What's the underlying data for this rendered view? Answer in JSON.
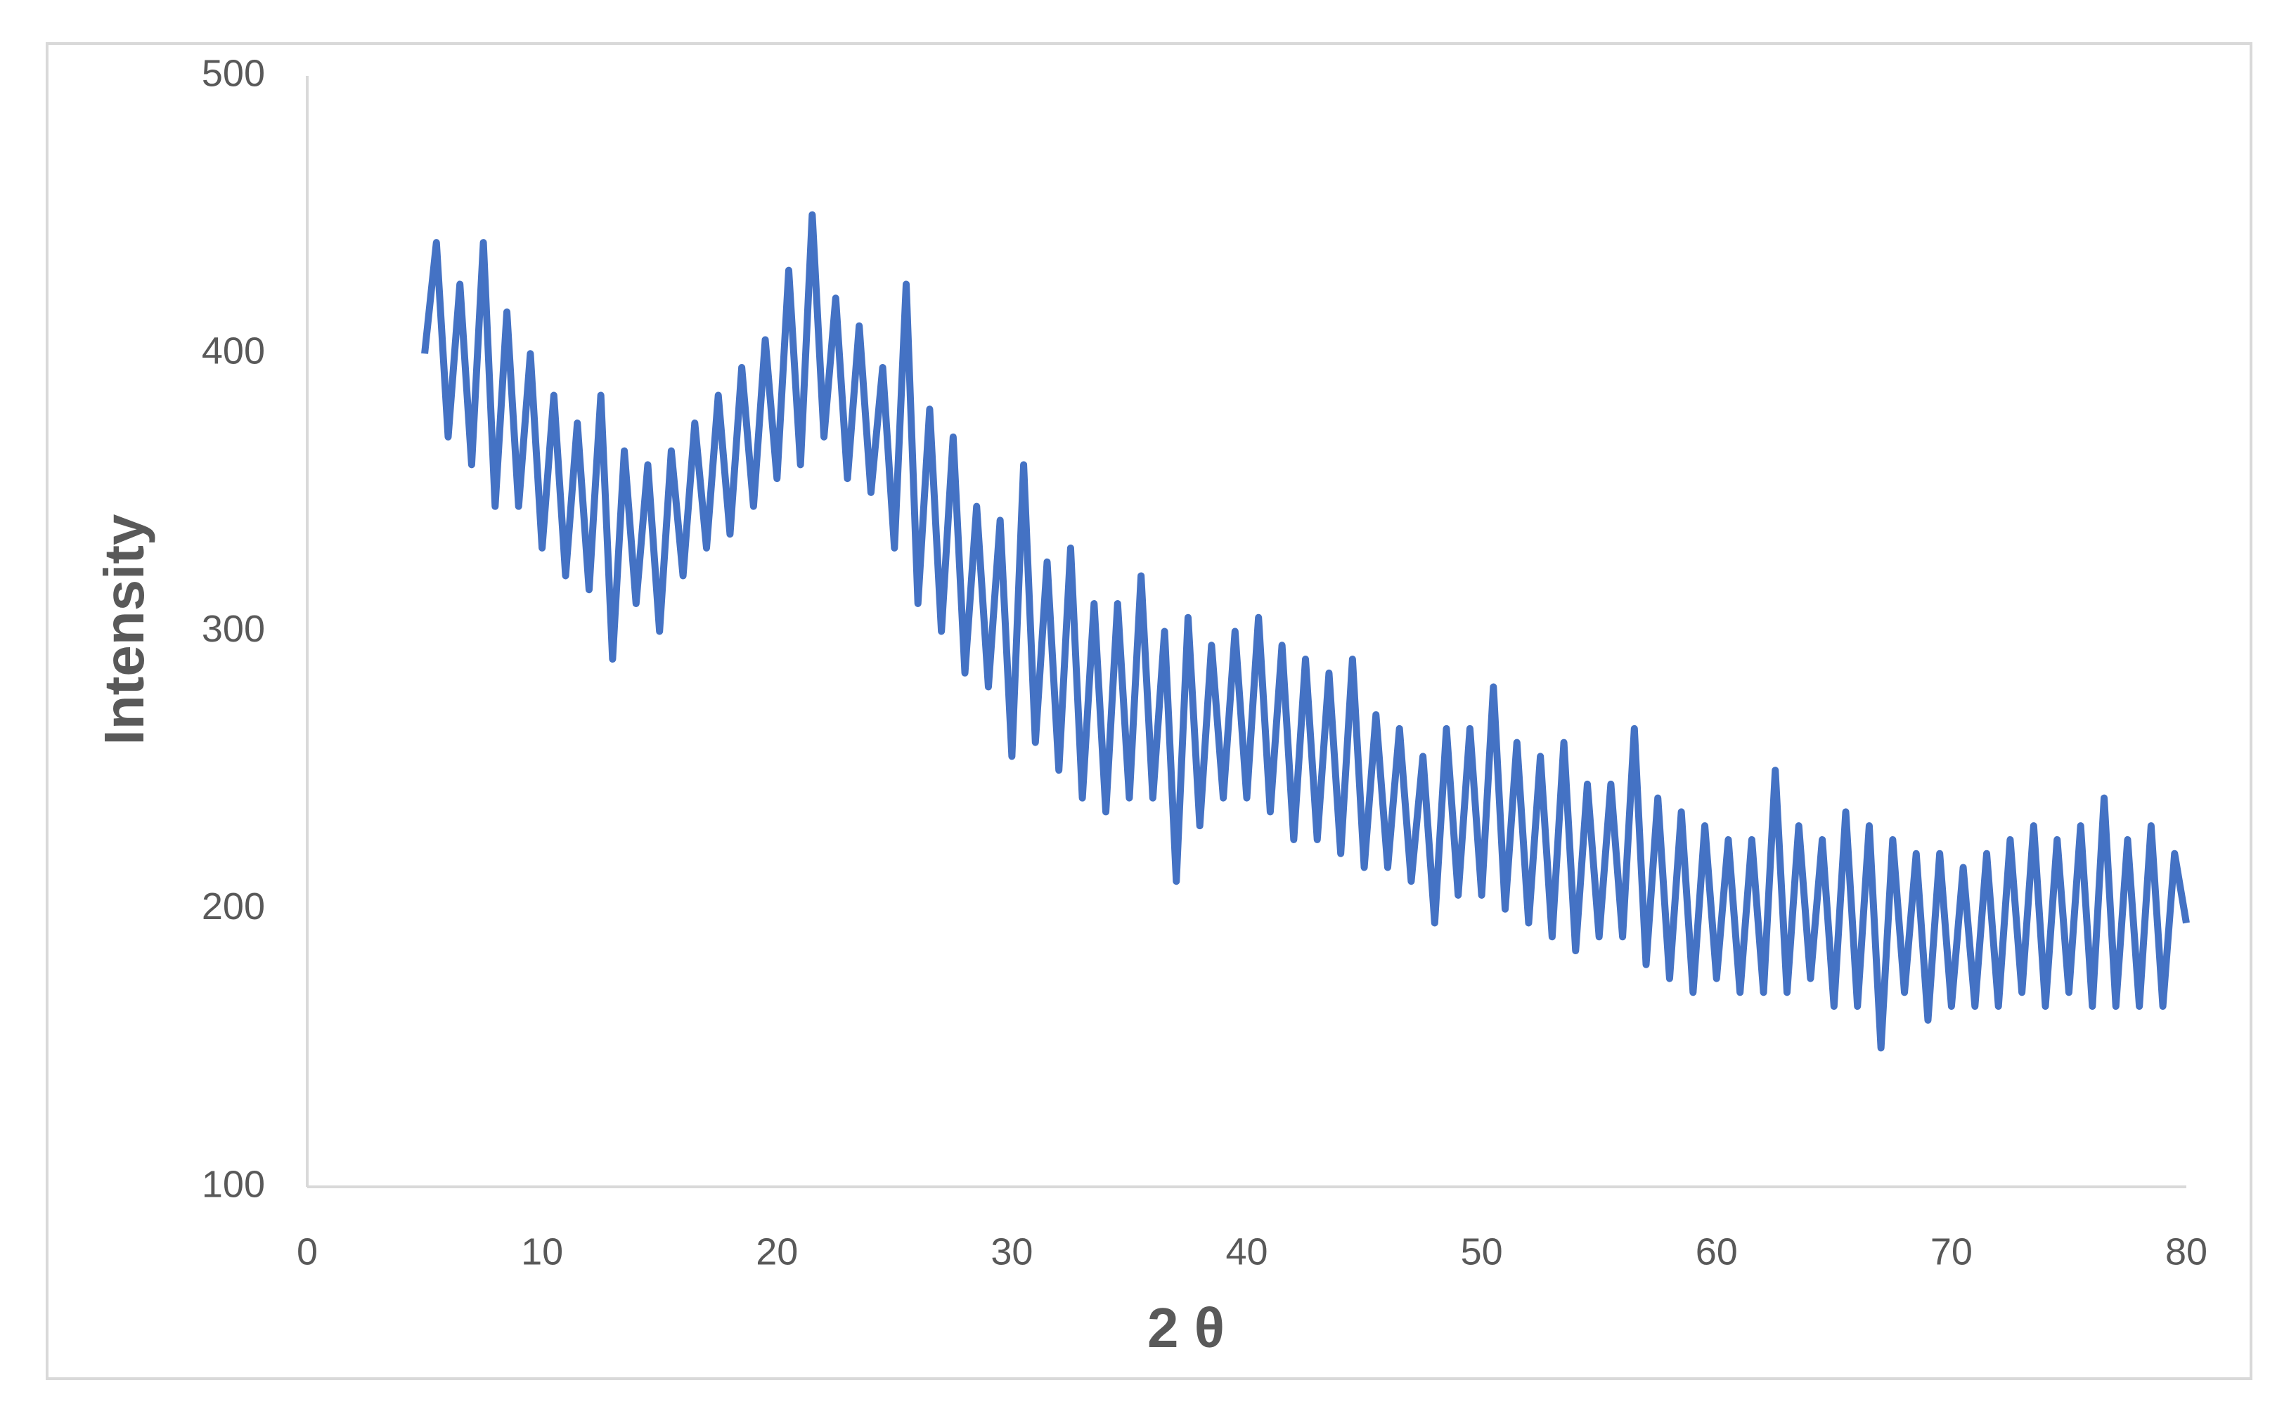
{
  "chart_data": {
    "type": "line",
    "x_label": "2 θ",
    "y_label": "Intensity",
    "color": "#4472c4",
    "grid": false,
    "xlim": [
      0,
      80
    ],
    "xticks": [
      0,
      10,
      20,
      30,
      40,
      50,
      60,
      70,
      80
    ],
    "ylim": [
      100,
      500
    ],
    "yticks": [
      100,
      200,
      300,
      400,
      500
    ],
    "x": [
      5,
      5.5,
      6,
      6.5,
      7,
      7.5,
      8,
      8.5,
      9,
      9.5,
      10,
      10.5,
      11,
      11.5,
      12,
      12.5,
      13,
      13.5,
      14,
      14.5,
      15,
      15.5,
      16,
      16.5,
      17,
      17.5,
      18,
      18.5,
      19,
      19.5,
      20,
      20.5,
      21,
      21.5,
      22,
      22.5,
      23,
      23.5,
      24,
      24.5,
      25,
      25.5,
      26,
      26.5,
      27,
      27.5,
      28,
      28.5,
      29,
      29.5,
      30,
      30.5,
      31,
      31.5,
      32,
      32.5,
      33,
      33.5,
      34,
      34.5,
      35,
      35.5,
      36,
      36.5,
      37,
      37.5,
      38,
      38.5,
      39,
      39.5,
      40,
      40.5,
      41,
      41.5,
      42,
      42.5,
      43,
      43.5,
      44,
      44.5,
      45,
      45.5,
      46,
      46.5,
      47,
      47.5,
      48,
      48.5,
      49,
      49.5,
      50,
      50.5,
      51,
      51.5,
      52,
      52.5,
      53,
      53.5,
      54,
      54.5,
      55,
      55.5,
      56,
      56.5,
      57,
      57.5,
      58,
      58.5,
      59,
      59.5,
      60,
      60.5,
      61,
      61.5,
      62,
      62.5,
      63,
      63.5,
      64,
      64.5,
      65,
      65.5,
      66,
      66.5,
      67,
      67.5,
      68,
      68.5,
      69,
      69.5,
      70,
      70.5,
      71,
      71.5,
      72,
      72.5,
      73,
      73.5,
      74,
      74.5,
      75,
      75.5,
      76,
      76.5,
      77,
      77.5,
      78,
      78.5,
      79,
      79.5,
      80
    ],
    "values": [
      400,
      440,
      370,
      425,
      360,
      440,
      345,
      415,
      345,
      400,
      330,
      385,
      320,
      375,
      315,
      385,
      290,
      365,
      310,
      360,
      300,
      365,
      320,
      375,
      330,
      385,
      335,
      395,
      345,
      405,
      355,
      430,
      360,
      450,
      370,
      420,
      355,
      410,
      350,
      395,
      330,
      425,
      310,
      380,
      300,
      370,
      285,
      345,
      280,
      340,
      255,
      360,
      260,
      325,
      250,
      330,
      240,
      310,
      235,
      310,
      240,
      320,
      240,
      300,
      210,
      305,
      230,
      295,
      240,
      300,
      240,
      305,
      235,
      295,
      225,
      290,
      225,
      285,
      220,
      290,
      215,
      270,
      215,
      265,
      210,
      255,
      195,
      265,
      205,
      265,
      205,
      280,
      200,
      260,
      195,
      255,
      190,
      260,
      185,
      245,
      190,
      245,
      190,
      265,
      180,
      240,
      175,
      235,
      170,
      230,
      175,
      225,
      170,
      225,
      170,
      250,
      170,
      230,
      175,
      225,
      165,
      235,
      165,
      230,
      150,
      225,
      170,
      220,
      160,
      220,
      165,
      215,
      165,
      220,
      165,
      225,
      170,
      230,
      165,
      225,
      170,
      230,
      165,
      240,
      165,
      225,
      165,
      230,
      165,
      220,
      195
    ]
  }
}
